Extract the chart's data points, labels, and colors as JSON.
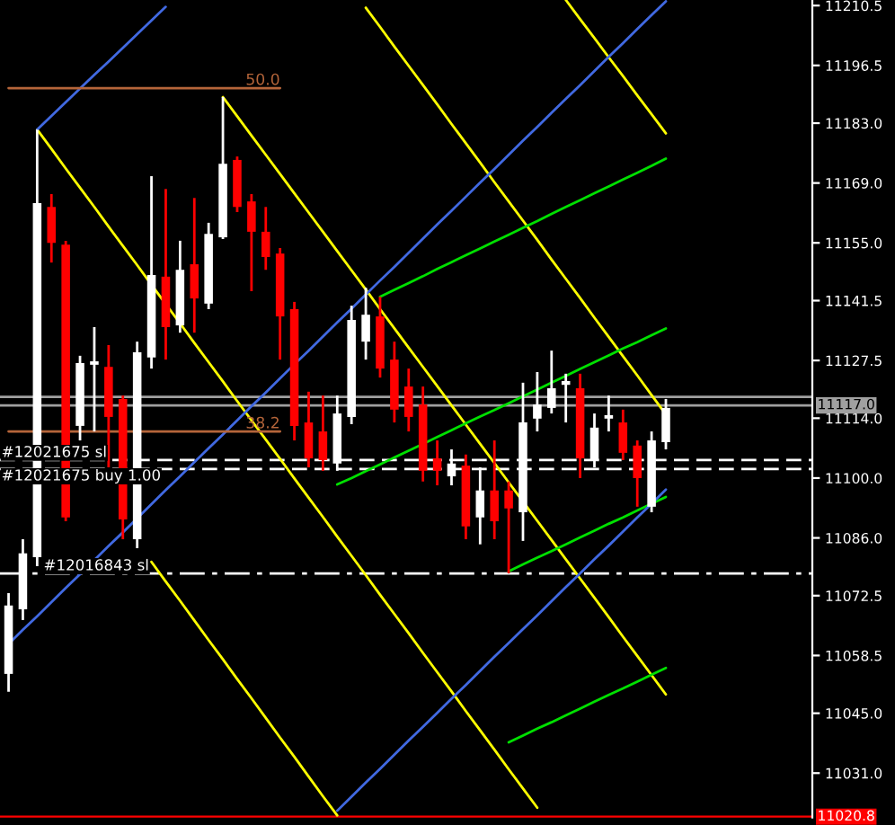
{
  "chart_data": {
    "type": "candlestick",
    "categories": [
      null,
      null,
      null,
      null,
      null,
      null,
      null,
      null,
      null,
      null,
      null,
      null,
      null,
      null,
      null,
      null,
      null,
      null,
      null,
      null,
      null,
      null,
      null,
      null,
      null,
      null,
      null,
      null,
      null,
      null,
      null,
      null,
      null,
      null,
      null,
      null,
      null,
      null,
      null,
      null,
      null,
      null,
      null,
      null,
      null,
      null,
      null
    ],
    "ohlc": [
      [
        11054.2,
        11073.1,
        11050.0,
        11070.2
      ],
      [
        11069.3,
        11085.7,
        11066.8,
        11082.4
      ],
      [
        11081.5,
        11181.5,
        11079.4,
        11164.3
      ],
      [
        11163.4,
        11166.4,
        11150.4,
        11155.0
      ],
      [
        11154.6,
        11155.5,
        11089.9,
        11090.8
      ],
      [
        11112.2,
        11128.6,
        11108.8,
        11126.9
      ],
      [
        11126.5,
        11135.3,
        11110.9,
        11127.3
      ],
      [
        11126.0,
        11131.1,
        11102.5,
        11114.3
      ],
      [
        11118.5,
        11119.3,
        11085.7,
        11090.3
      ],
      [
        11085.7,
        11131.9,
        11083.6,
        11129.4
      ],
      [
        11128.2,
        11170.6,
        11125.6,
        11147.5
      ],
      [
        11147.1,
        11167.6,
        11127.7,
        11135.3
      ],
      [
        11135.7,
        11155.5,
        11134.0,
        11148.7
      ],
      [
        11150.0,
        11165.5,
        11134.0,
        11142.0
      ],
      [
        11140.8,
        11159.7,
        11139.5,
        11157.1
      ],
      [
        11156.3,
        11189.1,
        11155.9,
        11173.5
      ],
      [
        11174.4,
        11175.2,
        11162.2,
        11163.4
      ],
      [
        11164.7,
        11166.4,
        11143.7,
        11157.6
      ],
      [
        11157.6,
        11163.4,
        11148.7,
        11151.7
      ],
      [
        11152.5,
        11153.8,
        11127.7,
        11137.8
      ],
      [
        11139.5,
        11141.2,
        11108.8,
        11112.2
      ],
      [
        11113.0,
        11120.2,
        11102.5,
        11104.6
      ],
      [
        11110.9,
        11119.3,
        11101.7,
        11104.2
      ],
      [
        11103.4,
        11119.3,
        11101.7,
        11115.1
      ],
      [
        11114.3,
        11140.3,
        11112.6,
        11137.0
      ],
      [
        11131.9,
        11144.5,
        11127.7,
        11138.2
      ],
      [
        11137.8,
        11142.4,
        11123.5,
        11125.6
      ],
      [
        11127.7,
        11131.9,
        11113.0,
        11116.0
      ],
      [
        11121.4,
        11125.6,
        11110.9,
        11114.3
      ],
      [
        11117.2,
        11121.4,
        11099.2,
        11101.7
      ],
      [
        11104.6,
        11108.8,
        11098.3,
        11101.7
      ],
      [
        11100.4,
        11106.7,
        11098.3,
        11103.4
      ],
      [
        11102.9,
        11105.5,
        11085.7,
        11088.7
      ],
      [
        11090.8,
        11102.5,
        11084.5,
        11097.1
      ],
      [
        11097.1,
        11108.8,
        11085.7,
        11089.9
      ],
      [
        11097.1,
        11099.2,
        11077.7,
        11092.9
      ],
      [
        11092.0,
        11122.3,
        11085.3,
        11113.0
      ],
      [
        11113.9,
        11124.8,
        11110.9,
        11117.2
      ],
      [
        11116.4,
        11129.8,
        11115.1,
        11121.0
      ],
      [
        11121.8,
        11124.4,
        11113.0,
        11122.7
      ],
      [
        11121.0,
        11124.4,
        11100.0,
        11104.6
      ],
      [
        11104.2,
        11115.1,
        11102.5,
        11111.8
      ],
      [
        11113.9,
        11119.3,
        11110.9,
        11114.7
      ],
      [
        11113.0,
        11116.0,
        11104.2,
        11105.9
      ],
      [
        11107.6,
        11108.8,
        11093.3,
        11100.0
      ],
      [
        11093.3,
        11110.9,
        11092.0,
        11108.8
      ],
      [
        11108.4,
        11118.5,
        11106.7,
        11116.4
      ]
    ],
    "series": [
      {
        "type": "line",
        "color": "#ffff00",
        "values": [
          null,
          null,
          11181.5,
          11177.0,
          11172.4,
          11167.9,
          11163.4,
          11158.8,
          11154.3,
          11149.8,
          11145.2,
          11140.7,
          11136.2,
          11131.6,
          11127.1,
          11122.6,
          11118.0,
          11113.5,
          11109.0,
          11104.5,
          11099.9,
          11095.4,
          11090.9,
          11086.3,
          11081.8,
          11077.3,
          11072.7,
          11068.2,
          11063.7,
          11059.1,
          11054.6,
          11050.1,
          11045.5,
          11041.0,
          11036.5,
          11031.9,
          11027.4,
          11022.9,
          null,
          null,
          null,
          null,
          null,
          null,
          null,
          null,
          null
        ]
      },
      {
        "type": "line",
        "color": "#ffff00",
        "values": [
          null,
          null,
          null,
          null,
          null,
          null,
          null,
          null,
          null,
          null,
          null,
          null,
          null,
          null,
          null,
          11189.1,
          11184.6,
          11180.1,
          11175.6,
          11171.1,
          11166.6,
          11162.1,
          11157.6,
          11153.1,
          11148.6,
          11144.1,
          11139.5,
          11135.0,
          11130.5,
          11126.0,
          11121.5,
          11117.0,
          11112.5,
          11108.0,
          11103.5,
          11099.0,
          11094.5,
          11090.0,
          11085.5,
          11081.0,
          11076.5,
          11072.0,
          11067.5,
          11062.9,
          11058.4,
          11053.9,
          11049.4
        ]
      },
      {
        "type": "line",
        "color": "#ffff00",
        "values": [
          null,
          null,
          null,
          null,
          null,
          null,
          null,
          null,
          null,
          null,
          null,
          null,
          null,
          null,
          null,
          null,
          null,
          null,
          null,
          null,
          null,
          null,
          null,
          null,
          null,
          11210.0,
          11205.5,
          11200.9,
          11196.4,
          11191.9,
          11187.4,
          11182.8,
          11178.3,
          11173.8,
          11169.2,
          11164.7,
          11160.2,
          11155.7,
          11151.1,
          11146.6,
          11142.1,
          11137.5,
          11133.0,
          11128.5,
          11124.0,
          11119.4,
          11114.9
        ]
      },
      {
        "type": "line",
        "color": "#ffff00",
        "values": [
          null,
          null,
          null,
          null,
          null,
          null,
          null,
          null,
          null,
          null,
          null,
          null,
          null,
          null,
          null,
          null,
          null,
          null,
          null,
          null,
          null,
          null,
          null,
          null,
          null,
          null,
          null,
          null,
          null,
          null,
          null,
          null,
          null,
          null,
          null,
          null,
          null,
          null,
          null,
          11211.8,
          11207.3,
          11202.9,
          11198.4,
          11194.0,
          11189.5,
          11185.1,
          11180.6
        ]
      },
      {
        "type": "line",
        "color": "#ffff00",
        "values": [
          null,
          null,
          null,
          null,
          null,
          null,
          null,
          null,
          null,
          null,
          11080.4,
          11075.8,
          11071.3,
          11066.7,
          11062.1,
          11057.6,
          11053.0,
          11048.5,
          11043.9,
          11039.3,
          11034.8,
          11030.2,
          11025.6,
          11021.1,
          null,
          null,
          null,
          null,
          null,
          null,
          null,
          null,
          null,
          null,
          null,
          null,
          null,
          null,
          null,
          null,
          null,
          null,
          null,
          null,
          null,
          null,
          null
        ]
      },
      {
        "type": "line",
        "color": "#00e000",
        "values": [
          null,
          null,
          null,
          null,
          null,
          null,
          null,
          null,
          null,
          null,
          null,
          null,
          null,
          null,
          null,
          null,
          null,
          null,
          null,
          null,
          null,
          null,
          null,
          null,
          null,
          null,
          11142.4,
          11144.0,
          11145.6,
          11147.2,
          11148.9,
          11150.5,
          11152.1,
          11153.7,
          11155.3,
          11156.9,
          11158.5,
          11160.1,
          11161.8,
          11163.4,
          11165.0,
          11166.6,
          11168.2,
          11169.8,
          11171.4,
          11173.0,
          11174.7
        ]
      },
      {
        "type": "line",
        "color": "#00e000",
        "values": [
          null,
          null,
          null,
          null,
          null,
          null,
          null,
          null,
          null,
          null,
          null,
          null,
          null,
          null,
          null,
          null,
          null,
          null,
          null,
          null,
          null,
          null,
          null,
          11098.5,
          11100.0,
          11101.6,
          11103.2,
          11104.8,
          11106.4,
          11108.0,
          11109.6,
          11111.2,
          11112.8,
          11114.4,
          11115.9,
          11117.5,
          11119.1,
          11120.7,
          11122.3,
          11123.9,
          11125.5,
          11127.1,
          11128.7,
          11130.3,
          11131.8,
          11133.4,
          11135.0
        ]
      },
      {
        "type": "line",
        "color": "#00e000",
        "values": [
          null,
          null,
          null,
          null,
          null,
          null,
          null,
          null,
          null,
          null,
          null,
          null,
          null,
          null,
          null,
          null,
          null,
          null,
          null,
          null,
          null,
          null,
          null,
          null,
          null,
          null,
          null,
          null,
          null,
          null,
          null,
          null,
          null,
          null,
          null,
          11078.2,
          11079.8,
          11081.4,
          11082.9,
          11084.5,
          11086.1,
          11087.7,
          11089.3,
          11090.8,
          11092.4,
          11094.0,
          11095.6
        ]
      },
      {
        "type": "line",
        "color": "#00e000",
        "values": [
          null,
          null,
          null,
          null,
          null,
          null,
          null,
          null,
          null,
          null,
          null,
          null,
          null,
          null,
          null,
          null,
          null,
          null,
          null,
          null,
          null,
          null,
          null,
          null,
          null,
          null,
          null,
          null,
          null,
          null,
          null,
          null,
          null,
          null,
          null,
          11038.2,
          11039.8,
          11041.4,
          11042.9,
          11044.5,
          11046.1,
          11047.7,
          11049.3,
          11050.8,
          11052.4,
          11054.0,
          11055.6
        ]
      },
      {
        "type": "line",
        "color": "#4169e1",
        "values": [
          null,
          null,
          11181.5,
          11184.7,
          11187.9,
          11191.1,
          11194.3,
          11197.4,
          11200.6,
          11203.8,
          11207.0,
          11210.2,
          null,
          null,
          null,
          null,
          null,
          null,
          null,
          null,
          null,
          null,
          null,
          null,
          null,
          null,
          null,
          null,
          null,
          null,
          null,
          null,
          null,
          null,
          null,
          null,
          null,
          null,
          null,
          null,
          null,
          null,
          null,
          null,
          null,
          null,
          null
        ]
      },
      {
        "type": "line",
        "color": "#4169e1",
        "values": [
          11061.2,
          11064.5,
          11067.7,
          11071.0,
          11074.3,
          11077.5,
          11080.8,
          11084.1,
          11087.3,
          11090.6,
          11093.9,
          11097.2,
          11100.4,
          11103.7,
          11107.0,
          11110.2,
          11113.5,
          11116.8,
          11120.0,
          11123.3,
          11126.6,
          11129.8,
          11133.1,
          11136.4,
          11139.6,
          11142.9,
          11146.2,
          11149.4,
          11152.7,
          11156.0,
          11159.3,
          11162.5,
          11165.8,
          11169.1,
          11172.3,
          11175.6,
          11178.9,
          11182.1,
          11185.4,
          11188.7,
          11191.9,
          11195.2,
          11198.5,
          11201.7,
          11205.0,
          11208.3,
          11211.5
        ]
      },
      {
        "type": "line",
        "color": "#4169e1",
        "values": [
          null,
          null,
          null,
          null,
          null,
          null,
          null,
          null,
          null,
          null,
          null,
          null,
          null,
          null,
          null,
          null,
          null,
          null,
          null,
          null,
          null,
          null,
          null,
          11022.2,
          11025.5,
          11028.8,
          11032.0,
          11035.3,
          11038.6,
          11041.8,
          11045.1,
          11048.4,
          11051.6,
          11054.9,
          11058.2,
          11061.4,
          11064.7,
          11067.9,
          11071.2,
          11074.5,
          11077.7,
          11081.0,
          11084.2,
          11087.5,
          11090.8,
          11094.0,
          11097.3
        ]
      },
      {
        "type": "line",
        "name": "50.0",
        "color": "#b5653a",
        "values": [
          11191.2,
          11191.2,
          11191.2,
          11191.2,
          11191.2,
          11191.2,
          11191.2,
          11191.2,
          11191.2,
          11191.2,
          11191.2,
          11191.2,
          11191.2,
          11191.2,
          11191.2,
          11191.2,
          11191.2,
          11191.2,
          11191.2,
          11191.2,
          null,
          null,
          null,
          null,
          null,
          null,
          null,
          null,
          null,
          null,
          null,
          null,
          null,
          null,
          null,
          null,
          null,
          null,
          null,
          null,
          null,
          null,
          null,
          null,
          null,
          null,
          null
        ]
      },
      {
        "type": "line",
        "name": "38.2",
        "color": "#b5653a",
        "values": [
          11110.9,
          11110.9,
          11110.9,
          11110.9,
          11110.9,
          11110.9,
          11110.9,
          11110.9,
          11110.9,
          11110.9,
          11110.9,
          11110.9,
          11110.9,
          11110.9,
          11110.9,
          11110.9,
          11110.9,
          11110.9,
          11110.9,
          11110.9,
          null,
          null,
          null,
          null,
          null,
          null,
          null,
          null,
          null,
          null,
          null,
          null,
          null,
          null,
          null,
          null,
          null,
          null,
          null,
          null,
          null,
          null,
          null,
          null,
          null,
          null,
          null
        ]
      }
    ],
    "ref_lines": [
      {
        "axis": "y",
        "value": 11119.0,
        "color": "#a0a0a0",
        "line_style": "solid"
      },
      {
        "axis": "y",
        "value": 11117.0,
        "label": "11117.0",
        "color": "#a0a0a0",
        "line_style": "solid"
      },
      {
        "axis": "y",
        "value": 11104.2,
        "label": "#12021675 sl",
        "color": "#ffffff",
        "line_style": "dashed"
      },
      {
        "axis": "y",
        "value": 11102.1,
        "label": "#12021675 buy 1.00",
        "color": "#ffffff",
        "line_style": "dashed"
      },
      {
        "axis": "y",
        "value": 11077.7,
        "label": "#12016843 sl",
        "color": "#ffffff",
        "line_style": "dashdot"
      },
      {
        "axis": "y",
        "value": 11020.8,
        "label": "11020.8",
        "color": "#ff0000",
        "line_style": "solid"
      }
    ],
    "ylim": [
      11020.6,
      11211.8
    ],
    "yticks": [
      {
        "value": 11031,
        "label": "11031.0"
      },
      {
        "value": 11045,
        "label": "11045.0"
      },
      {
        "value": 11058.5,
        "label": "11058.5"
      },
      {
        "value": 11072.5,
        "label": "11072.5"
      },
      {
        "value": 11086,
        "label": "11086.0"
      },
      {
        "value": 11100,
        "label": "11100.0"
      },
      {
        "value": 11114,
        "label": "11114.0"
      },
      {
        "value": 11127.5,
        "label": "11127.5"
      },
      {
        "value": 11141.5,
        "label": "11141.5"
      },
      {
        "value": 11155,
        "label": "11155.0"
      },
      {
        "value": 11169,
        "label": "11169.0"
      },
      {
        "value": 11183,
        "label": "11183.0"
      },
      {
        "value": 11196.5,
        "label": "11196.5"
      },
      {
        "value": 11210.5,
        "label": "11210.5"
      }
    ],
    "grid": false,
    "legend": false
  }
}
